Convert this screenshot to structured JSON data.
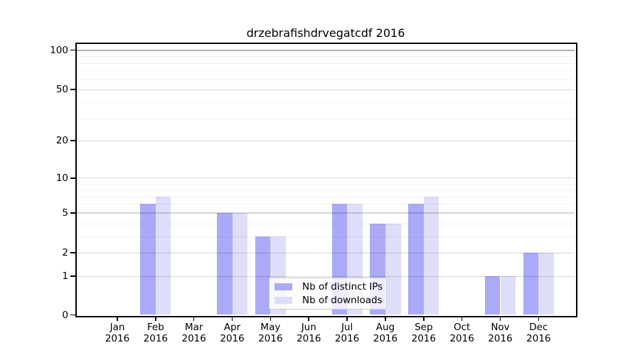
{
  "chart_data": {
    "type": "bar",
    "title": "drzebrafishdrvegatcdf 2016",
    "categories": [
      "Jan 2016",
      "Feb 2016",
      "Mar 2016",
      "Apr 2016",
      "May 2016",
      "Jun 2016",
      "Jul 2016",
      "Aug 2016",
      "Sep 2016",
      "Oct 2016",
      "Nov 2016",
      "Dec 2016"
    ],
    "series": [
      {
        "name": "Nb of distinct IPs",
        "color": "#aaaaf8",
        "values": [
          0,
          6,
          0,
          5,
          3,
          0,
          6,
          4,
          6,
          0,
          1,
          2
        ]
      },
      {
        "name": "Nb of downloads",
        "color": "#dedef8",
        "values": [
          0,
          7,
          0,
          5,
          3,
          0,
          6,
          4,
          7,
          0,
          1,
          2
        ]
      }
    ],
    "xlabel": "",
    "ylabel": "",
    "yscale": "log1p",
    "yticks": [
      0,
      1,
      2,
      5,
      10,
      20,
      50,
      100
    ],
    "minor_yticks": [
      3,
      4,
      6,
      7,
      8,
      9,
      30,
      40,
      60,
      70,
      80,
      90
    ],
    "ylim": [
      0,
      110
    ],
    "grid": "on",
    "legend_position": "lower-center"
  }
}
